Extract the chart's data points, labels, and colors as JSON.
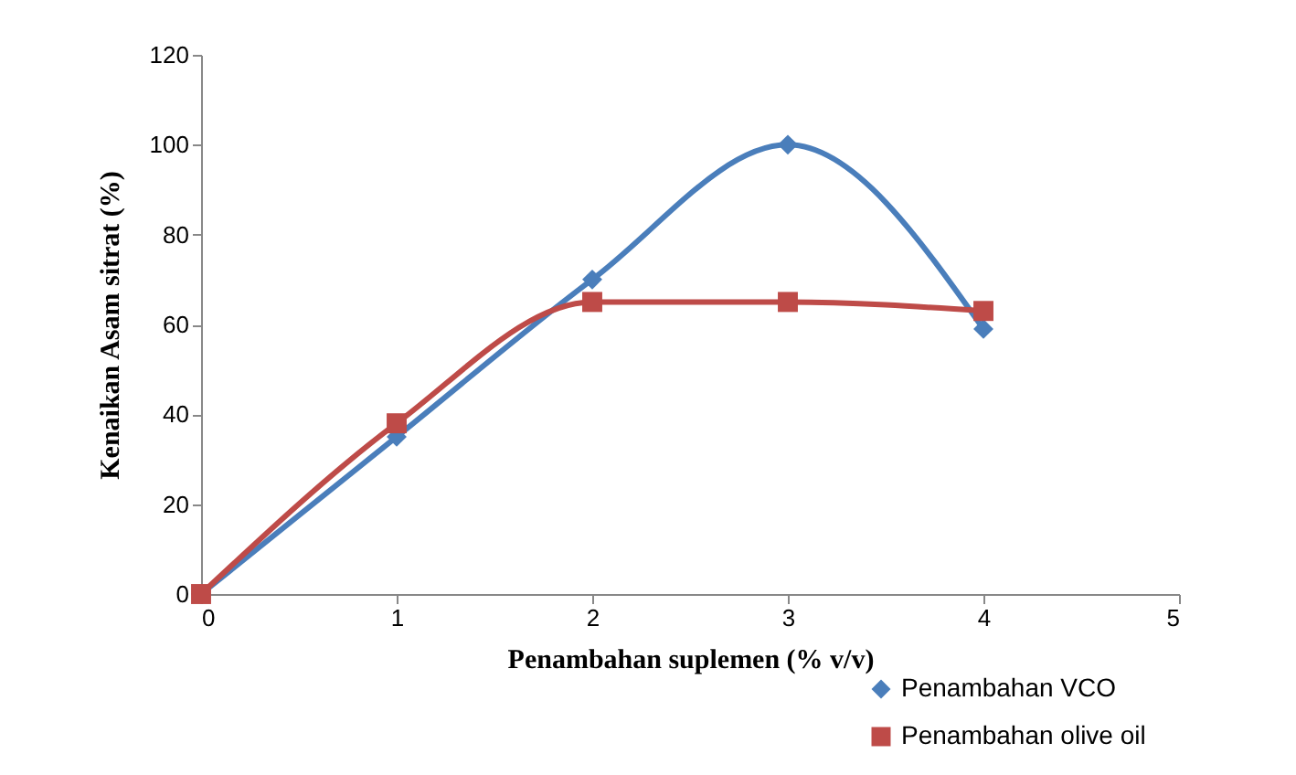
{
  "chart_data": {
    "type": "line",
    "xlabel": "Penambahan suplemen (% v/v)",
    "ylabel": "Kenaikan Asam sitrat (%)",
    "x": [
      0,
      1,
      2,
      3,
      4
    ],
    "xlim": [
      0,
      5
    ],
    "xticks": [
      0,
      1,
      2,
      3,
      4,
      5
    ],
    "ylim": [
      0,
      120
    ],
    "yticks": [
      0,
      20,
      40,
      60,
      80,
      100,
      120
    ],
    "legend": "bottom right",
    "grid": false,
    "line_style": "solid",
    "series": [
      {
        "name": "Penambahan VCO",
        "color": "#4a7ebb",
        "marker": "diamond",
        "values": [
          0,
          35,
          70,
          100,
          59
        ]
      },
      {
        "name": "Penambahan olive oil",
        "color": "#be4b48",
        "marker": "square",
        "values": [
          0,
          38,
          65,
          65,
          63
        ]
      }
    ]
  }
}
